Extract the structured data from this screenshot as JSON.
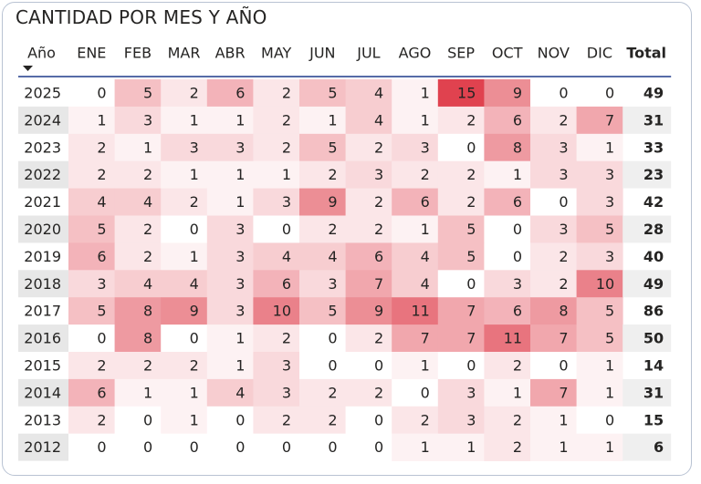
{
  "title": "CANTIDAD POR MES Y AÑO",
  "colors": {
    "accent": "#e0424f",
    "header_rule": "#1e3a8a",
    "total_bg": "#efefef",
    "zebra": "#e7e7e7"
  },
  "chart_data": {
    "type": "heatmap",
    "corner_label": "Año",
    "sort_icon": "sort-descending-icon",
    "columns": [
      "ENE",
      "FEB",
      "MAR",
      "ABR",
      "MAY",
      "JUN",
      "JUL",
      "AGO",
      "SEP",
      "OCT",
      "NOV",
      "DIC"
    ],
    "total_label": "Total",
    "rows": [
      {
        "year": "2025",
        "values": [
          0,
          5,
          2,
          6,
          2,
          5,
          4,
          1,
          15,
          9,
          0,
          0
        ],
        "total": 49
      },
      {
        "year": "2024",
        "values": [
          1,
          3,
          1,
          1,
          2,
          1,
          4,
          1,
          2,
          6,
          2,
          7
        ],
        "total": 31
      },
      {
        "year": "2023",
        "values": [
          2,
          1,
          3,
          3,
          2,
          5,
          2,
          3,
          0,
          8,
          3,
          1
        ],
        "total": 33
      },
      {
        "year": "2022",
        "values": [
          2,
          2,
          1,
          1,
          1,
          2,
          3,
          2,
          2,
          1,
          3,
          3
        ],
        "total": 23
      },
      {
        "year": "2021",
        "values": [
          4,
          4,
          2,
          1,
          3,
          9,
          2,
          6,
          2,
          6,
          0,
          3
        ],
        "total": 42
      },
      {
        "year": "2020",
        "values": [
          5,
          2,
          0,
          3,
          0,
          2,
          2,
          1,
          5,
          0,
          3,
          5
        ],
        "total": 28
      },
      {
        "year": "2019",
        "values": [
          6,
          2,
          1,
          3,
          4,
          4,
          6,
          4,
          5,
          0,
          2,
          3
        ],
        "total": 40
      },
      {
        "year": "2018",
        "values": [
          3,
          4,
          4,
          3,
          6,
          3,
          7,
          4,
          0,
          3,
          2,
          10
        ],
        "total": 49
      },
      {
        "year": "2017",
        "values": [
          5,
          8,
          9,
          3,
          10,
          5,
          9,
          11,
          7,
          6,
          8,
          5
        ],
        "total": 86
      },
      {
        "year": "2016",
        "values": [
          0,
          8,
          0,
          1,
          2,
          0,
          2,
          7,
          7,
          11,
          7,
          5
        ],
        "total": 50
      },
      {
        "year": "2015",
        "values": [
          2,
          2,
          2,
          1,
          3,
          0,
          0,
          1,
          0,
          2,
          0,
          1
        ],
        "total": 14
      },
      {
        "year": "2014",
        "values": [
          6,
          1,
          1,
          4,
          3,
          2,
          2,
          0,
          3,
          1,
          7,
          1
        ],
        "total": 31
      },
      {
        "year": "2013",
        "values": [
          2,
          0,
          1,
          0,
          2,
          2,
          0,
          2,
          3,
          2,
          1,
          0
        ],
        "total": 15
      },
      {
        "year": "2012",
        "values": [
          0,
          0,
          0,
          0,
          0,
          0,
          0,
          1,
          1,
          2,
          1,
          1
        ],
        "total": 6
      }
    ]
  }
}
